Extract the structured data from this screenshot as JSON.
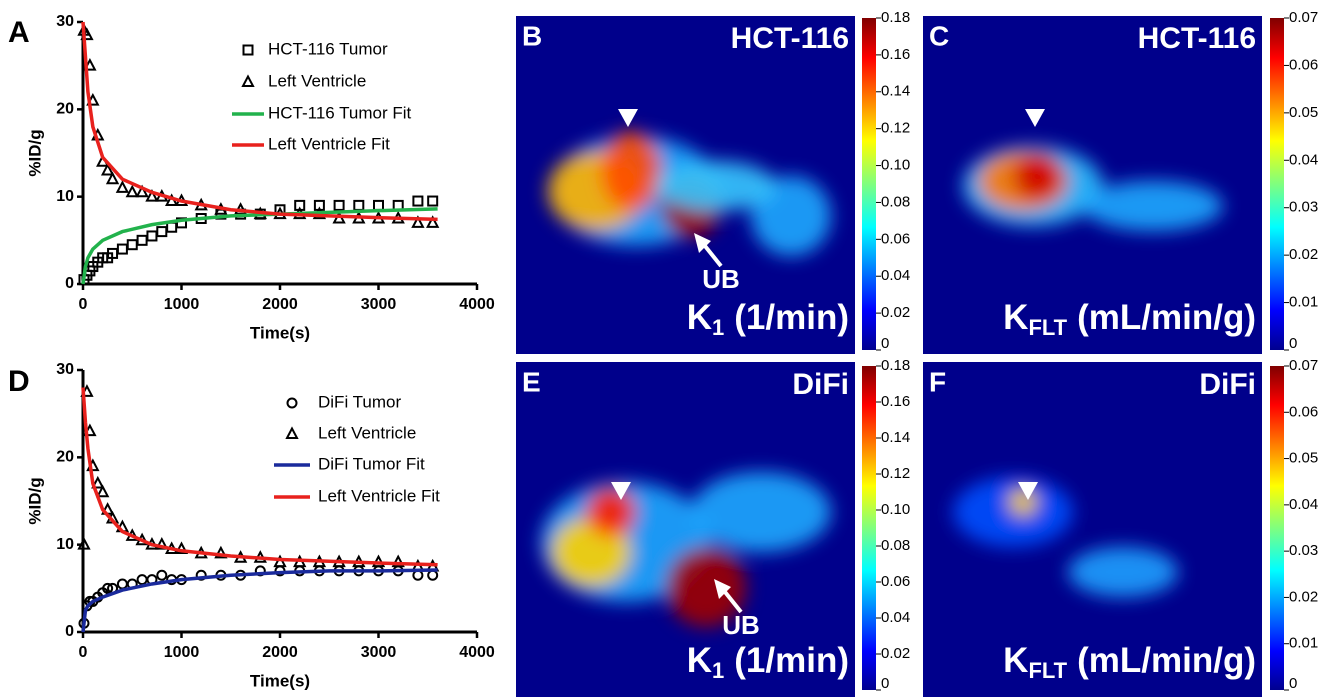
{
  "chart_data": [
    {
      "type": "line",
      "panel_label": "A",
      "xlabel": "Time(s)",
      "ylabel": "%ID/g",
      "xlim": [
        0,
        4000
      ],
      "ylim": [
        0,
        30
      ],
      "xticks": [
        0,
        1000,
        2000,
        3000,
        4000
      ],
      "yticks": [
        0,
        10,
        20,
        30
      ],
      "series": [
        {
          "name": "HCT-116 Tumor",
          "style": "scatter",
          "marker": "square",
          "color": "#000000",
          "x": [
            10,
            40,
            70,
            100,
            150,
            200,
            250,
            300,
            400,
            500,
            600,
            700,
            800,
            900,
            1000,
            1200,
            1400,
            1600,
            1800,
            2000,
            2200,
            2400,
            2600,
            2800,
            3000,
            3200,
            3400,
            3550
          ],
          "values": [
            0.5,
            1,
            1.5,
            2,
            2.5,
            3,
            3,
            3.5,
            4,
            4.5,
            5,
            5.5,
            6,
            6.5,
            7,
            7.5,
            8,
            8,
            8,
            8.5,
            9,
            9,
            9,
            9,
            9,
            9,
            9.5,
            9.5
          ]
        },
        {
          "name": "Left Ventricle",
          "style": "scatter",
          "marker": "triangle",
          "color": "#000000",
          "x": [
            10,
            40,
            70,
            100,
            150,
            200,
            250,
            300,
            400,
            500,
            600,
            700,
            800,
            900,
            1000,
            1200,
            1400,
            1600,
            1800,
            2000,
            2200,
            2400,
            2600,
            2800,
            3000,
            3200,
            3400,
            3550
          ],
          "values": [
            29,
            28.5,
            25,
            21,
            17,
            14,
            13,
            12,
            11,
            10.5,
            10.5,
            10,
            10,
            9.5,
            9.5,
            9,
            8.5,
            8.5,
            8,
            8,
            8,
            8,
            7.5,
            7.5,
            7.5,
            7.5,
            7,
            7
          ]
        },
        {
          "name": "HCT-116 Tumor Fit",
          "style": "line",
          "color": "#22b24c",
          "x": [
            0,
            25,
            50,
            100,
            200,
            400,
            700,
            1000,
            1500,
            2000,
            2500,
            3000,
            3600
          ],
          "values": [
            0,
            2,
            3,
            4,
            5,
            6,
            6.8,
            7.3,
            7.8,
            8,
            8.2,
            8.4,
            8.6
          ]
        },
        {
          "name": "Left Ventricle Fit",
          "style": "line",
          "color": "#e8211d",
          "x": [
            0,
            25,
            50,
            100,
            200,
            400,
            700,
            1000,
            1500,
            2000,
            2500,
            3000,
            3600
          ],
          "values": [
            30,
            26,
            22,
            18,
            14.5,
            12,
            10.5,
            9.5,
            8.5,
            8,
            7.8,
            7.6,
            7.4
          ]
        }
      ]
    },
    {
      "type": "line",
      "panel_label": "D",
      "xlabel": "Time(s)",
      "ylabel": "%ID/g",
      "xlim": [
        0,
        4000
      ],
      "ylim": [
        0,
        30
      ],
      "xticks": [
        0,
        1000,
        2000,
        3000,
        4000
      ],
      "yticks": [
        0,
        10,
        20,
        30
      ],
      "series": [
        {
          "name": "DiFi Tumor",
          "style": "scatter",
          "marker": "circle",
          "color": "#000000",
          "x": [
            10,
            40,
            70,
            100,
            150,
            200,
            250,
            300,
            400,
            500,
            600,
            700,
            800,
            900,
            1000,
            1200,
            1400,
            1600,
            1800,
            2000,
            2200,
            2400,
            2600,
            2800,
            3000,
            3200,
            3400,
            3550
          ],
          "values": [
            1,
            3,
            3.5,
            3.5,
            4,
            4.5,
            5,
            5,
            5.5,
            5.5,
            6,
            6,
            6.5,
            6,
            6,
            6.5,
            6.5,
            6.5,
            7,
            7,
            7,
            7,
            7,
            7,
            7,
            7,
            6.5,
            6.5
          ]
        },
        {
          "name": "Left Ventricle",
          "style": "scatter",
          "marker": "triangle",
          "color": "#000000",
          "x": [
            10,
            40,
            70,
            100,
            150,
            200,
            250,
            300,
            400,
            500,
            600,
            700,
            800,
            900,
            1000,
            1200,
            1400,
            1600,
            1800,
            2000,
            2200,
            2400,
            2600,
            2800,
            3000,
            3200,
            3400,
            3550
          ],
          "values": [
            10,
            27.5,
            23,
            19,
            17,
            16,
            14,
            13,
            12,
            11,
            10.5,
            10,
            10,
            9.5,
            9.5,
            9,
            9,
            8.5,
            8.5,
            8,
            8,
            8,
            8,
            8,
            8,
            8,
            7.5,
            7.5
          ]
        },
        {
          "name": "DiFi Tumor Fit",
          "style": "line",
          "color": "#1a2a9c",
          "x": [
            0,
            25,
            50,
            100,
            200,
            400,
            700,
            1000,
            1500,
            2000,
            2500,
            3000,
            3600
          ],
          "values": [
            0,
            2.5,
            3,
            3.5,
            4,
            4.8,
            5.5,
            6,
            6.5,
            6.8,
            7,
            7,
            7.1
          ]
        },
        {
          "name": "Left Ventricle Fit",
          "style": "line",
          "color": "#e8211d",
          "x": [
            0,
            25,
            50,
            100,
            200,
            400,
            700,
            1000,
            1500,
            2000,
            2500,
            3000,
            3600
          ],
          "values": [
            28,
            24,
            21,
            17,
            14,
            11.5,
            10,
            9.3,
            8.7,
            8.3,
            8.1,
            7.9,
            7.7
          ]
        }
      ]
    },
    {
      "type": "colorbar",
      "panel_label": "B",
      "title": "HCT-116",
      "param": {
        "main": "K",
        "sub": "1",
        "rest": "(1/min)"
      },
      "annotation": "UB",
      "ylim": [
        0,
        0.18
      ],
      "yticks": [
        0,
        0.02,
        0.04,
        0.06,
        0.08,
        {
          "value": 0.1,
          "label": "0.10"
        },
        0.12,
        0.14,
        0.16,
        0.18
      ]
    },
    {
      "type": "colorbar",
      "panel_label": "C",
      "title": "HCT-116",
      "param": {
        "main": "K",
        "sub": "FLT",
        "rest": "(mL/min/g)"
      },
      "ylim": [
        0,
        0.07
      ],
      "yticks": [
        0,
        0.01,
        0.02,
        0.03,
        0.04,
        0.05,
        0.06,
        0.07
      ]
    },
    {
      "type": "colorbar",
      "panel_label": "E",
      "title": "DiFi",
      "param": {
        "main": "K",
        "sub": "1",
        "rest": "(1/min)"
      },
      "annotation": "UB",
      "ylim": [
        0,
        0.18
      ],
      "yticks": [
        0,
        0.02,
        0.04,
        0.06,
        0.08,
        {
          "value": 0.1,
          "label": "0.10"
        },
        0.12,
        0.14,
        0.16,
        0.18
      ]
    },
    {
      "type": "colorbar",
      "panel_label": "F",
      "title": "DiFi",
      "param": {
        "main": "K",
        "sub": "FLT",
        "rest": "(mL/min/g)"
      },
      "ylim": [
        0,
        0.07
      ],
      "yticks": [
        0,
        0.01,
        0.02,
        0.03,
        0.04,
        0.05,
        0.06,
        0.07
      ]
    }
  ]
}
